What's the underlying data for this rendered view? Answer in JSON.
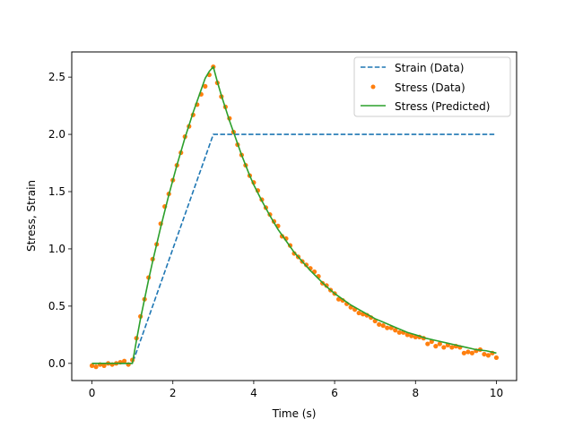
{
  "chart_data": {
    "type": "line",
    "xlabel": "Time (s)",
    "ylabel": "Stress, Strain",
    "xlim": [
      -0.5,
      10.5
    ],
    "ylim": [
      -0.15,
      2.72
    ],
    "xticks": [
      0,
      2,
      4,
      6,
      8,
      10
    ],
    "yticks": [
      0.0,
      0.5,
      1.0,
      1.5,
      2.0,
      2.5
    ],
    "xtick_labels": [
      "0",
      "2",
      "4",
      "6",
      "8",
      "10"
    ],
    "ytick_labels": [
      "0.0",
      "0.5",
      "1.0",
      "1.5",
      "2.0",
      "2.5"
    ],
    "grid": false,
    "legend_position": "top-right",
    "series": [
      {
        "name": "Strain (Data)",
        "style": "dashed-line",
        "color": "#1f77b4",
        "x": [
          0,
          1,
          3,
          10
        ],
        "y": [
          0,
          0,
          2.0,
          2.0
        ]
      },
      {
        "name": "Stress (Data)",
        "style": "points",
        "color": "#ff7f0e",
        "x": [
          0.0,
          0.1,
          0.2,
          0.3,
          0.4,
          0.5,
          0.6,
          0.7,
          0.8,
          0.9,
          1.0,
          1.1,
          1.2,
          1.3,
          1.4,
          1.5,
          1.6,
          1.7,
          1.8,
          1.9,
          2.0,
          2.1,
          2.2,
          2.3,
          2.4,
          2.5,
          2.6,
          2.7,
          2.8,
          2.9,
          3.0,
          3.1,
          3.2,
          3.3,
          3.4,
          3.5,
          3.6,
          3.7,
          3.8,
          3.9,
          4.0,
          4.1,
          4.2,
          4.3,
          4.4,
          4.5,
          4.6,
          4.7,
          4.8,
          4.9,
          5.0,
          5.1,
          5.2,
          5.3,
          5.4,
          5.5,
          5.6,
          5.7,
          5.8,
          5.9,
          6.0,
          6.1,
          6.2,
          6.3,
          6.4,
          6.5,
          6.6,
          6.7,
          6.8,
          6.9,
          7.0,
          7.1,
          7.2,
          7.3,
          7.4,
          7.5,
          7.6,
          7.7,
          7.8,
          7.9,
          8.0,
          8.1,
          8.2,
          8.3,
          8.4,
          8.5,
          8.6,
          8.7,
          8.8,
          8.9,
          9.0,
          9.1,
          9.2,
          9.3,
          9.4,
          9.5,
          9.6,
          9.7,
          9.8,
          9.9,
          10.0
        ],
        "y": [
          -0.02,
          -0.03,
          -0.01,
          -0.02,
          0.0,
          -0.01,
          0.0,
          0.01,
          0.02,
          -0.01,
          0.03,
          0.22,
          0.41,
          0.56,
          0.75,
          0.91,
          1.04,
          1.22,
          1.37,
          1.48,
          1.6,
          1.73,
          1.84,
          1.98,
          2.07,
          2.17,
          2.26,
          2.35,
          2.42,
          2.52,
          2.59,
          2.45,
          2.33,
          2.24,
          2.14,
          2.02,
          1.91,
          1.82,
          1.73,
          1.64,
          1.58,
          1.51,
          1.43,
          1.36,
          1.3,
          1.24,
          1.2,
          1.11,
          1.09,
          1.03,
          0.96,
          0.93,
          0.89,
          0.86,
          0.83,
          0.8,
          0.76,
          0.7,
          0.68,
          0.64,
          0.61,
          0.56,
          0.55,
          0.52,
          0.49,
          0.47,
          0.44,
          0.43,
          0.42,
          0.4,
          0.37,
          0.34,
          0.33,
          0.31,
          0.31,
          0.29,
          0.27,
          0.27,
          0.25,
          0.24,
          0.23,
          0.23,
          0.22,
          0.17,
          0.19,
          0.15,
          0.17,
          0.14,
          0.16,
          0.14,
          0.15,
          0.14,
          0.09,
          0.1,
          0.09,
          0.11,
          0.12,
          0.08,
          0.07,
          0.09,
          0.05
        ]
      },
      {
        "name": "Stress (Predicted)",
        "style": "solid-line",
        "color": "#2ca02c",
        "x": [
          0.0,
          0.5,
          1.0,
          1.1,
          1.2,
          1.3,
          1.4,
          1.5,
          1.6,
          1.7,
          1.8,
          1.9,
          2.0,
          2.1,
          2.2,
          2.3,
          2.4,
          2.5,
          2.6,
          2.7,
          2.8,
          2.9,
          3.0,
          3.1,
          3.2,
          3.3,
          3.4,
          3.5,
          3.6,
          3.7,
          3.8,
          3.9,
          4.0,
          4.2,
          4.4,
          4.6,
          4.8,
          5.0,
          5.2,
          5.4,
          5.6,
          5.8,
          6.0,
          6.2,
          6.4,
          6.6,
          6.8,
          7.0,
          7.2,
          7.4,
          7.6,
          7.8,
          8.0,
          8.25,
          8.5,
          8.75,
          9.0,
          9.25,
          9.5,
          9.75,
          10.0
        ],
        "y": [
          0.0,
          0.0,
          0.0,
          0.2,
          0.39,
          0.56,
          0.73,
          0.89,
          1.04,
          1.19,
          1.33,
          1.47,
          1.6,
          1.73,
          1.85,
          1.97,
          2.08,
          2.19,
          2.29,
          2.39,
          2.49,
          2.55,
          2.59,
          2.46,
          2.34,
          2.23,
          2.12,
          2.02,
          1.92,
          1.82,
          1.73,
          1.64,
          1.56,
          1.42,
          1.29,
          1.17,
          1.07,
          0.97,
          0.89,
          0.81,
          0.74,
          0.67,
          0.61,
          0.56,
          0.51,
          0.47,
          0.43,
          0.39,
          0.36,
          0.33,
          0.3,
          0.27,
          0.25,
          0.22,
          0.2,
          0.18,
          0.16,
          0.14,
          0.12,
          0.11,
          0.09
        ]
      }
    ]
  }
}
